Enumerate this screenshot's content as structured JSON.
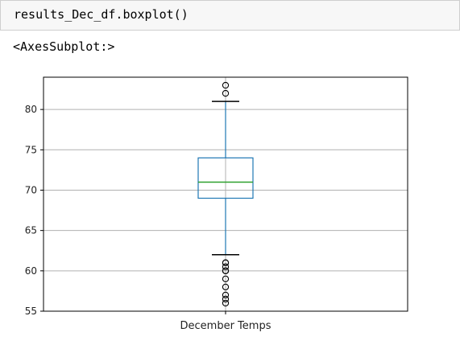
{
  "code_cell": {
    "source": "results_Dec_df.boxplot()"
  },
  "output": {
    "repr": "<AxesSubplot:>"
  },
  "chart_data": {
    "type": "box",
    "categories": [
      "December Temps"
    ],
    "ylim": [
      55,
      84
    ],
    "yticks": [
      55,
      60,
      65,
      70,
      75,
      80
    ],
    "grid": true,
    "series": [
      {
        "name": "December Temps",
        "whisker_low": 62,
        "q1": 69,
        "median": 71,
        "q3": 74,
        "whisker_high": 81,
        "outliers": [
          56,
          56.5,
          57,
          58,
          59,
          60,
          60,
          60.5,
          61,
          61,
          82,
          83
        ]
      }
    ],
    "colors": {
      "box": "#1f77b4",
      "median": "#2ca02c",
      "whisker": "#1f77b4",
      "cap": "#000000",
      "outlier": "#000000",
      "grid": "#b0b0b0",
      "frame": "#000000"
    }
  }
}
